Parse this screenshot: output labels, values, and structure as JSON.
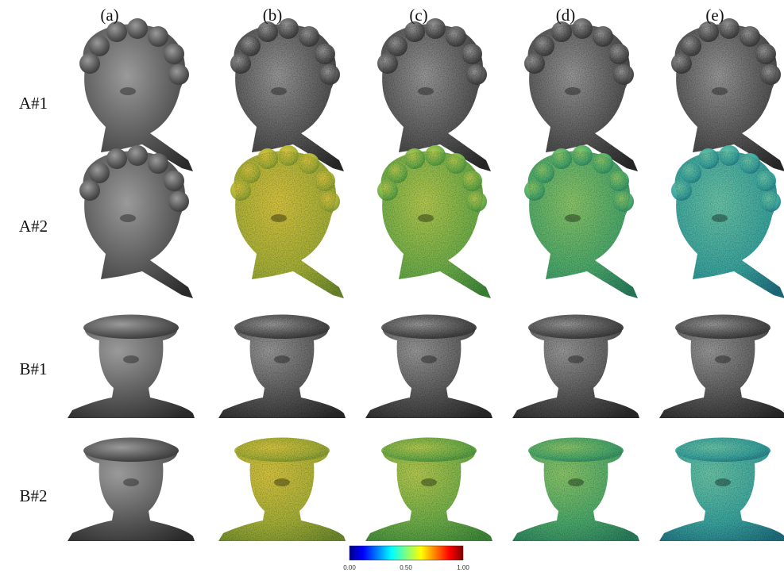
{
  "columns": [
    "(a)",
    "(b)",
    "(c)",
    "(d)",
    "(e)"
  ],
  "rows": [
    "A#1",
    "A#2",
    "B#1",
    "B#2"
  ],
  "colorbar": {
    "labels": [
      "0.00",
      "0.50",
      "1.00"
    ]
  }
}
